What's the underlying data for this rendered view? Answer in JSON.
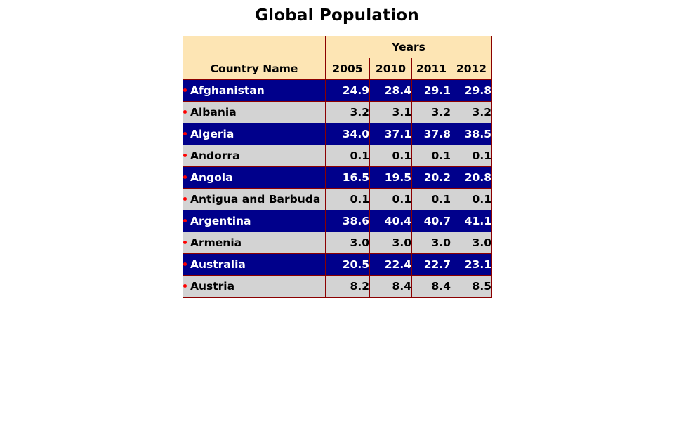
{
  "title": "Global Population",
  "colors": {
    "header_bg": "#fde5b4",
    "odd_row_bg": "#00008b",
    "odd_row_text": "#ffffff",
    "even_row_bg": "#d3d3d3",
    "even_row_text": "#000000",
    "border": "#8b0000",
    "bullet": "#ff0000"
  },
  "chart_data": {
    "type": "table",
    "title": "Global Population",
    "group_header": "Years",
    "columns": [
      "Country Name",
      "2005",
      "2010",
      "2011",
      "2012"
    ],
    "rows": [
      {
        "name": "Afghanistan",
        "values": [
          "24.9",
          "28.4",
          "29.1",
          "29.8"
        ]
      },
      {
        "name": "Albania",
        "values": [
          "3.2",
          "3.1",
          "3.2",
          "3.2"
        ]
      },
      {
        "name": "Algeria",
        "values": [
          "34.0",
          "37.1",
          "37.8",
          "38.5"
        ]
      },
      {
        "name": "Andorra",
        "values": [
          "0.1",
          "0.1",
          "0.1",
          "0.1"
        ]
      },
      {
        "name": "Angola",
        "values": [
          "16.5",
          "19.5",
          "20.2",
          "20.8"
        ]
      },
      {
        "name": "Antigua and Barbuda",
        "values": [
          "0.1",
          "0.1",
          "0.1",
          "0.1"
        ]
      },
      {
        "name": "Argentina",
        "values": [
          "38.6",
          "40.4",
          "40.7",
          "41.1"
        ]
      },
      {
        "name": "Armenia",
        "values": [
          "3.0",
          "3.0",
          "3.0",
          "3.0"
        ]
      },
      {
        "name": "Australia",
        "values": [
          "20.5",
          "22.4",
          "22.7",
          "23.1"
        ]
      },
      {
        "name": "Austria",
        "values": [
          "8.2",
          "8.4",
          "8.4",
          "8.5"
        ]
      }
    ]
  }
}
